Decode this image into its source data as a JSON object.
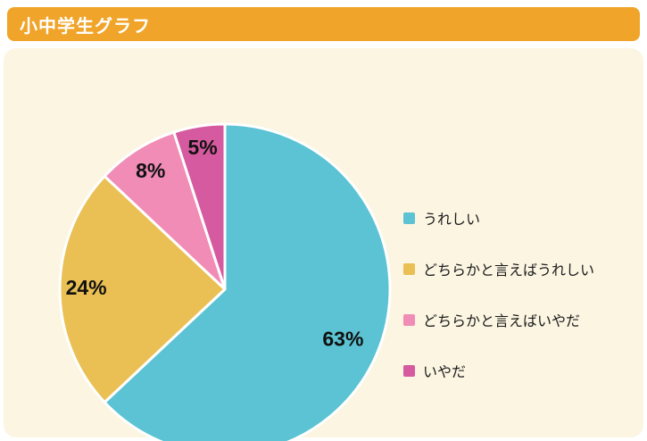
{
  "header": {
    "title": "小中学生グラフ",
    "bar_color": "#F0A429"
  },
  "colors": {
    "panel_background": "#FBF5E2",
    "page_background": "#FFFFFF",
    "slice_border": "#FFFFFF",
    "label_text": "#111111"
  },
  "chart_data": {
    "type": "pie",
    "title": "小中学生グラフ",
    "start_angle_deg": 0,
    "direction": "clockwise",
    "legend_position": "right",
    "slices": [
      {
        "label": "うれしい",
        "value": 63,
        "percent_label": "63%",
        "color": "#5BC3D3"
      },
      {
        "label": "どちらかと言えばうれしい",
        "value": 24,
        "percent_label": "24%",
        "color": "#EAC054"
      },
      {
        "label": "どちらかと言えばいやだ",
        "value": 8,
        "percent_label": "8%",
        "color": "#F08CB5"
      },
      {
        "label": "いやだ",
        "value": 5,
        "percent_label": "5%",
        "color": "#D65A9F"
      }
    ]
  }
}
